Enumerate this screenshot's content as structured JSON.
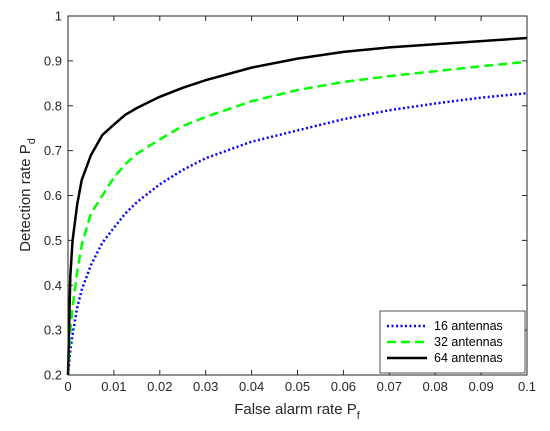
{
  "chart_data": {
    "type": "line",
    "title": "",
    "xlabel": "False alarm rate P",
    "xlabel_sub": "f",
    "ylabel": "Detection rate P",
    "ylabel_sub": "d",
    "xlim": [
      0,
      0.1
    ],
    "ylim": [
      0.2,
      1
    ],
    "xticks": [
      "0",
      "0.01",
      "0.02",
      "0.03",
      "0.04",
      "0.05",
      "0.06",
      "0.07",
      "0.08",
      "0.09",
      "0.1"
    ],
    "yticks": [
      "0.2",
      "0.3",
      "0.4",
      "0.5",
      "0.6",
      "0.7",
      "0.8",
      "0.9",
      "1"
    ],
    "grid": false,
    "legend_position": "bottom-right",
    "x": [
      0,
      0.0005,
      0.001,
      0.002,
      0.003,
      0.005,
      0.0075,
      0.01,
      0.0125,
      0.015,
      0.02,
      0.025,
      0.03,
      0.04,
      0.05,
      0.06,
      0.07,
      0.08,
      0.09,
      0.1
    ],
    "series": [
      {
        "name": "16 antennas",
        "color": "#0000ff",
        "style": "dotted",
        "values": [
          0.2,
          0.255,
          0.29,
          0.35,
          0.39,
          0.445,
          0.495,
          0.528,
          0.56,
          0.585,
          0.625,
          0.657,
          0.683,
          0.72,
          0.745,
          0.77,
          0.79,
          0.805,
          0.818,
          0.828
        ]
      },
      {
        "name": "32 antennas",
        "color": "#00ff00",
        "style": "dashed",
        "values": [
          0.2,
          0.3,
          0.35,
          0.43,
          0.49,
          0.56,
          0.6,
          0.64,
          0.67,
          0.693,
          0.725,
          0.755,
          0.775,
          0.81,
          0.835,
          0.853,
          0.866,
          0.877,
          0.888,
          0.898
        ]
      },
      {
        "name": "64 antennas",
        "color": "#000000",
        "style": "solid",
        "values": [
          0.2,
          0.42,
          0.5,
          0.58,
          0.635,
          0.69,
          0.735,
          0.758,
          0.78,
          0.795,
          0.82,
          0.84,
          0.857,
          0.885,
          0.905,
          0.92,
          0.93,
          0.937,
          0.944,
          0.951
        ]
      }
    ]
  }
}
